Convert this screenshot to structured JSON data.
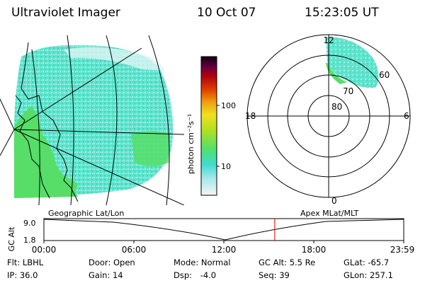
{
  "header": {
    "title": "Ultraviolet Imager",
    "date": "10 Oct 07",
    "time": "15:23:05 UT"
  },
  "colorbar": {
    "unit_label": "photon cm⁻²s⁻¹",
    "ticks": [
      "100",
      "10"
    ],
    "scale": "log",
    "colors": [
      "#f4f4f4",
      "#a8e8e8",
      "#40dcd0",
      "#50e070",
      "#b0e020",
      "#f0e020",
      "#f0a010",
      "#e04000",
      "#b00010",
      "#600040",
      "#100010"
    ]
  },
  "left_panel": {
    "caption": "Geographic Lat/Lon",
    "auroral_color": "#40dcc0",
    "land_color": "#50e060"
  },
  "right_panel": {
    "caption": "Apex MLat/MLT",
    "lat_labels": [
      "80",
      "70",
      "60"
    ],
    "mlt_labels": {
      "top": "12",
      "left": "18",
      "right": "6",
      "bottom": "0"
    }
  },
  "timeline": {
    "ylabel": "GC Alt",
    "y_top": "9.0",
    "y_bottom": "1.8",
    "x_ticks": [
      "00:00",
      "06:00",
      "12:00",
      "18:00",
      "23:59"
    ],
    "marker_color": "#dd0000",
    "marker_time": "15:23:05"
  },
  "status": {
    "row1": [
      {
        "label": "Flt:",
        "value": "LBHL"
      },
      {
        "label": "Door:",
        "value": "Open"
      },
      {
        "label": "Mode:",
        "value": "Normal"
      },
      {
        "label": "GC Alt:",
        "value": "5.5 Re"
      },
      {
        "label": "GLat:",
        "value": "-65.7"
      }
    ],
    "row2": [
      {
        "label": "IP:",
        "value": "36.0"
      },
      {
        "label": "Gain:",
        "value": "14"
      },
      {
        "label": "Dsp:",
        "value": "-4.0"
      },
      {
        "label": "Seq:",
        "value": "39"
      },
      {
        "label": "GLon:",
        "value": "257.1"
      }
    ]
  }
}
